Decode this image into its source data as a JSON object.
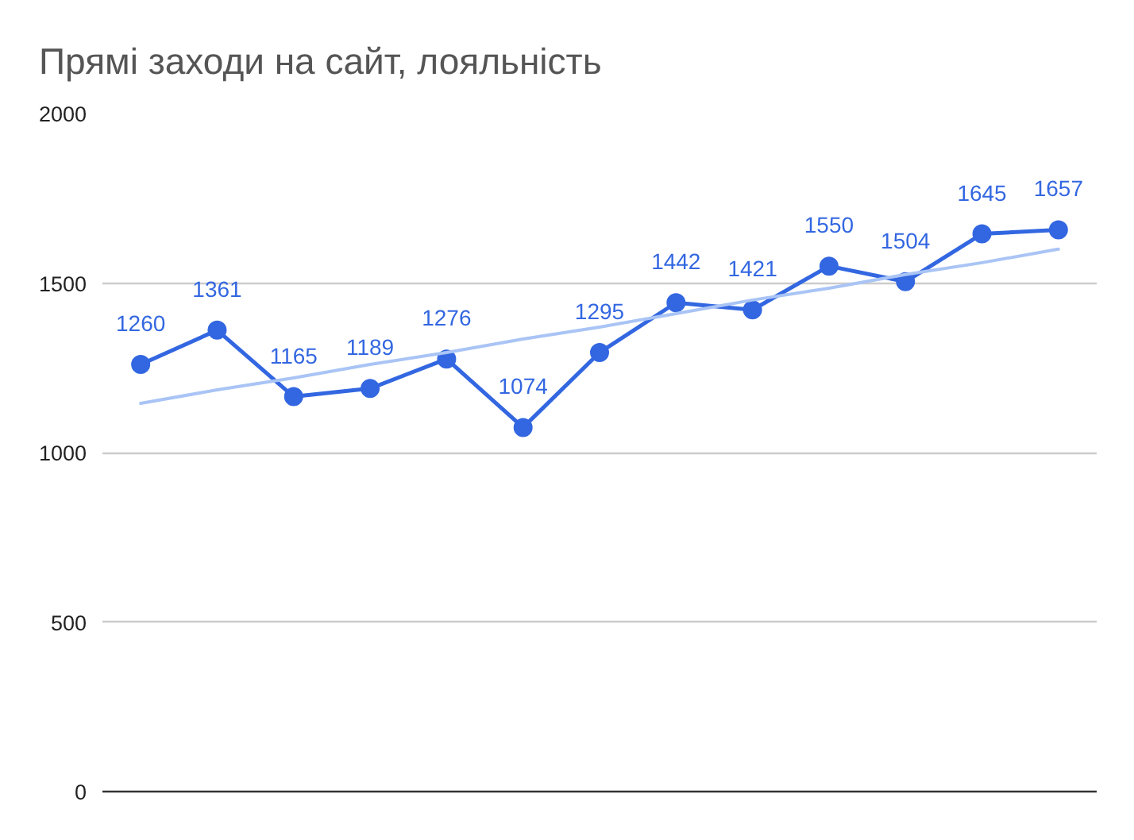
{
  "chart_data": {
    "type": "line",
    "title": "Прямі заходи на сайт, лояльність",
    "categories": [
      null,
      null,
      null,
      null,
      null,
      null,
      null,
      null,
      null,
      null,
      null,
      null,
      null
    ],
    "series": [
      {
        "color": "#3367e1",
        "values": [
          1260,
          1361,
          1165,
          1189,
          1276,
          1074,
          1295,
          1442,
          1421,
          1550,
          1504,
          1645,
          1657
        ],
        "value_labels": [
          "1260",
          "1361",
          "1165",
          "1189",
          "1276",
          "1074",
          "1295",
          "1442",
          "1421",
          "1550",
          "1504",
          "1645",
          "1657"
        ]
      },
      {
        "type": "line",
        "color": "#a9c4f5",
        "values": [
          1145,
          1185,
          1220,
          1260,
          1295,
          1335,
          1370,
          1410,
          1450,
          1485,
          1525,
          1560,
          1600
        ],
        "marker": "none"
      }
    ],
    "ylim": [
      0,
      2000
    ],
    "yticks": [
      0,
      500,
      1000,
      1500,
      2000
    ],
    "grid": "y",
    "marker": "circle",
    "tick_labels": "y"
  }
}
